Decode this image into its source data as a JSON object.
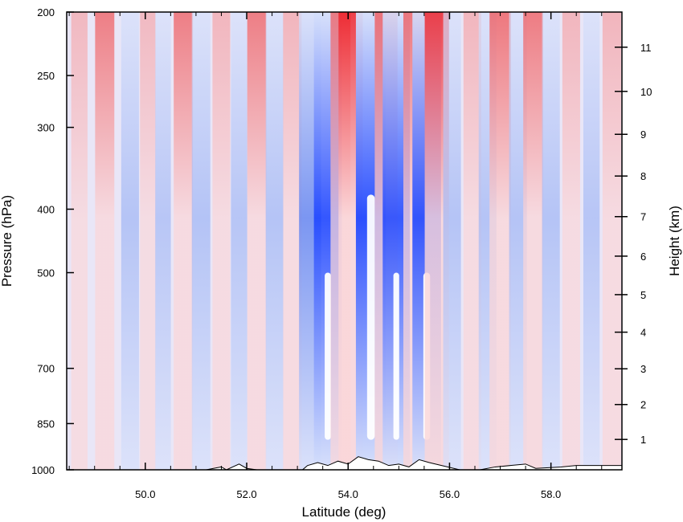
{
  "chart_data": {
    "type": "heatmap",
    "title": "",
    "xlabel": "Latitude (deg)",
    "ylabel_left": "Pressure (hPa)",
    "ylabel_right": "Height (km)",
    "xlim": [
      48.45,
      59.4
    ],
    "x_ticks": [
      "50.0",
      "52.0",
      "54.0",
      "56.0",
      "58.0"
    ],
    "x_tick_values": [
      50,
      52,
      54,
      56,
      58
    ],
    "y_scale": "log-pressure",
    "ylim_hpa": [
      1000,
      200
    ],
    "y_ticks": [
      "200",
      "250",
      "300",
      "400",
      "500",
      "700",
      "850",
      "1000"
    ],
    "y_tick_values": [
      200,
      250,
      300,
      400,
      500,
      700,
      850,
      1000
    ],
    "right_ticks": [
      "1",
      "2",
      "3",
      "4",
      "5",
      "6",
      "7",
      "8",
      "9",
      "10",
      "11"
    ],
    "right_tick_values_km": [
      1,
      2,
      3,
      4,
      5,
      6,
      7,
      8,
      9,
      10,
      11
    ],
    "colormap": [
      "#1f46ff",
      "#5b7ff0",
      "#9db4f5",
      "#d6e0fb",
      "#fbd6d8",
      "#f5a0a4",
      "#ef5558",
      "#ee1c24"
    ],
    "saturated_color": "#ffffff",
    "stripes": [
      {
        "lat": 48.7,
        "sign": 1,
        "amp": 0.35
      },
      {
        "lat": 49.2,
        "sign": 1,
        "amp": 0.55
      },
      {
        "lat": 49.7,
        "sign": -1,
        "amp": 0.45
      },
      {
        "lat": 50.05,
        "sign": 1,
        "amp": 0.3
      },
      {
        "lat": 50.35,
        "sign": -1,
        "amp": 0.3
      },
      {
        "lat": 50.75,
        "sign": 1,
        "amp": 0.55
      },
      {
        "lat": 51.1,
        "sign": -1,
        "amp": 0.5
      },
      {
        "lat": 51.5,
        "sign": 1,
        "amp": 0.45
      },
      {
        "lat": 51.85,
        "sign": -1,
        "amp": 0.35
      },
      {
        "lat": 52.2,
        "sign": 1,
        "amp": 0.55
      },
      {
        "lat": 52.55,
        "sign": -1,
        "amp": 0.45
      },
      {
        "lat": 52.9,
        "sign": 1,
        "amp": 0.5
      },
      {
        "lat": 53.25,
        "sign": -1,
        "amp": 0.75
      },
      {
        "lat": 53.6,
        "sign": -1,
        "amp": 1.15
      },
      {
        "lat": 53.85,
        "sign": 1,
        "amp": 0.6
      },
      {
        "lat": 54.05,
        "sign": 1,
        "amp": 0.9
      },
      {
        "lat": 54.45,
        "sign": -1,
        "amp": 1.3
      },
      {
        "lat": 54.75,
        "sign": 1,
        "amp": 0.8
      },
      {
        "lat": 54.95,
        "sign": -1,
        "amp": 1.1
      },
      {
        "lat": 55.3,
        "sign": 1,
        "amp": 0.7
      },
      {
        "lat": 55.55,
        "sign": -1,
        "amp": 1.2
      },
      {
        "lat": 55.75,
        "sign": 1,
        "amp": 0.9
      },
      {
        "lat": 56.05,
        "sign": -1,
        "amp": 0.45
      },
      {
        "lat": 56.45,
        "sign": 1,
        "amp": 0.45
      },
      {
        "lat": 56.75,
        "sign": -1,
        "amp": 0.45
      },
      {
        "lat": 57.0,
        "sign": 1,
        "amp": 0.7
      },
      {
        "lat": 57.35,
        "sign": -1,
        "amp": 0.45
      },
      {
        "lat": 57.65,
        "sign": 1,
        "amp": 0.6
      },
      {
        "lat": 58.0,
        "sign": -1,
        "amp": 0.45
      },
      {
        "lat": 58.4,
        "sign": 1,
        "amp": 0.45
      },
      {
        "lat": 58.8,
        "sign": -1,
        "amp": 0.35
      },
      {
        "lat": 59.2,
        "sign": 1,
        "amp": 0.5
      }
    ],
    "terrain_profile": {
      "lat": [
        48.45,
        51.2,
        51.5,
        51.6,
        51.85,
        52.0,
        52.2,
        53.1,
        53.2,
        53.4,
        53.6,
        53.8,
        54.0,
        54.2,
        54.4,
        54.6,
        54.8,
        55.0,
        55.2,
        55.4,
        55.6,
        56.2,
        56.6,
        56.9,
        57.5,
        57.7,
        58.2,
        58.5,
        59.4
      ],
      "p_hpa": [
        1000,
        1000,
        990,
        1000,
        980,
        995,
        1000,
        1000,
        985,
        975,
        985,
        970,
        980,
        955,
        965,
        970,
        985,
        980,
        990,
        965,
        975,
        1000,
        1000,
        990,
        980,
        995,
        990,
        985,
        985
      ]
    }
  }
}
